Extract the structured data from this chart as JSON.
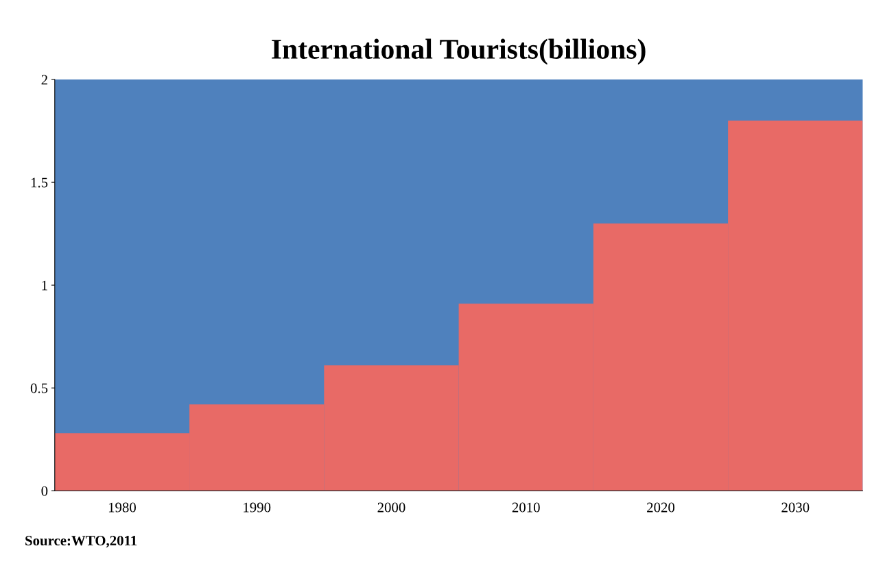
{
  "chart_data": {
    "type": "bar",
    "title": "International Tourists(billions)",
    "categories": [
      "1980",
      "1990",
      "2000",
      "2010",
      "2020",
      "2030"
    ],
    "values": [
      0.28,
      0.42,
      0.61,
      0.91,
      1.3,
      1.8
    ],
    "color": "#e86a66",
    "ylim": [
      0,
      2
    ],
    "yticks": [
      0,
      0.5,
      1,
      1.5,
      2
    ],
    "annotations": [
      "Source:WTO,2011"
    ]
  }
}
